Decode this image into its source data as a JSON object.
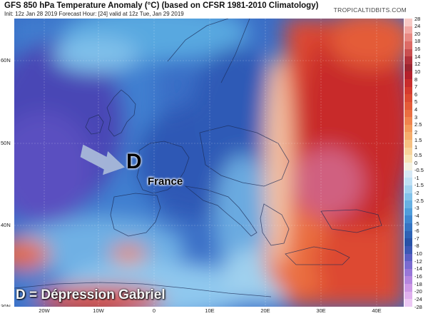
{
  "header": {
    "title": "GFS 850 hPa Temperature Anomaly (°C) (based on CFSR 1981-2010 Climatology)",
    "subtitle": "Init: 12z Jan 28 2019   Forecast Hour: [24]   valid at 12z Tue, Jan 29 2019",
    "credit": "TROPICALTIDBITS.COM"
  },
  "axes": {
    "latitude_labels": [
      "60N",
      "50N",
      "40N",
      "30N"
    ],
    "longitude_labels": [
      "20W",
      "10W",
      "0",
      "10E",
      "20E",
      "30E",
      "40E"
    ]
  },
  "colorbar": {
    "labels": [
      "28",
      "24",
      "20",
      "18",
      "16",
      "14",
      "12",
      "10",
      "8",
      "7",
      "6",
      "5",
      "4",
      "3",
      "2.5",
      "2",
      "1.5",
      "1",
      "0.5",
      "0",
      "-0.5",
      "-1",
      "-1.5",
      "-2",
      "-2.5",
      "-3",
      "-4",
      "-5",
      "-6",
      "-7",
      "-8",
      "-10",
      "-12",
      "-14",
      "-16",
      "-18",
      "-20",
      "-24",
      "-28"
    ],
    "colors": [
      "#f7c9c5",
      "#f2a8a3",
      "#e88983",
      "#dd6b66",
      "#c94f50",
      "#b1323b",
      "#9c2530",
      "#b4202c",
      "#c82c2c",
      "#d53a2e",
      "#dd4a32",
      "#e45b38",
      "#ea6e40",
      "#f0834c",
      "#f3995a",
      "#f5ad6c",
      "#f6c082",
      "#f7d29a",
      "#f7e3b6",
      "#f3f0e0",
      "#d6e8f5",
      "#bfe0f5",
      "#a2d2f0",
      "#83c2ea",
      "#67b0e3",
      "#4f9ddb",
      "#3f87d0",
      "#3574c3",
      "#2d62b5",
      "#2752a7",
      "#3b58b5",
      "#5b5fc4",
      "#7a6bd0",
      "#9876d8",
      "#b485df",
      "#cd98e6",
      "#dfb0ee",
      "#ecc8f4"
    ]
  },
  "annotations": {
    "depression_marker": "D",
    "country_label": "France",
    "legend": "D = Dépression Gabriel"
  },
  "colors": {
    "cold_deep": "#2f4fb0",
    "cold": "#3f7fd0",
    "cool": "#7fbfe8",
    "neutral": "#f3f0e0",
    "warm": "#e8603a",
    "hot": "#c82c2c",
    "very_hot": "#9c2530",
    "arrow": "#a8b8d8"
  }
}
